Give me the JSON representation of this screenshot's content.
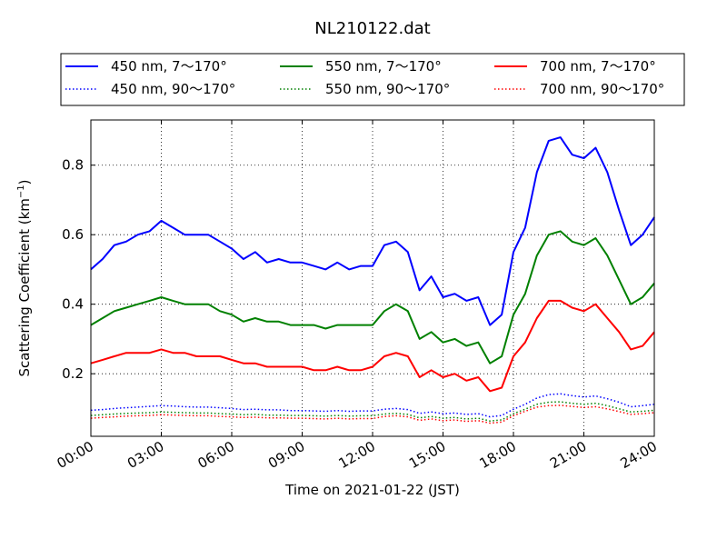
{
  "chart_data": {
    "type": "line",
    "title": "NL210122.dat",
    "xlabel": "Time on 2021-01-22 (JST)",
    "ylabel": "Scattering Coefficient (km",
    "ylabel_exp": "−1",
    "ylabel_close": ")",
    "xlim": [
      0,
      24
    ],
    "ylim": [
      0.02,
      0.93
    ],
    "grid": true,
    "legend_position": "top, above plot, 3 columns",
    "x_ticks": [
      {
        "value": 0,
        "label": "00:00"
      },
      {
        "value": 3,
        "label": "03:00"
      },
      {
        "value": 6,
        "label": "06:00"
      },
      {
        "value": 9,
        "label": "09:00"
      },
      {
        "value": 12,
        "label": "12:00"
      },
      {
        "value": 15,
        "label": "15:00"
      },
      {
        "value": 18,
        "label": "18:00"
      },
      {
        "value": 21,
        "label": "21:00"
      },
      {
        "value": 24,
        "label": "24:00"
      }
    ],
    "y_ticks": [
      {
        "value": 0.2,
        "label": "0.2"
      },
      {
        "value": 0.4,
        "label": "0.4"
      },
      {
        "value": 0.6,
        "label": "0.6"
      },
      {
        "value": 0.8,
        "label": "0.8"
      }
    ],
    "x": [
      0,
      0.5,
      1,
      1.5,
      2,
      2.5,
      3,
      3.5,
      4,
      4.5,
      5,
      5.5,
      6,
      6.5,
      7,
      7.5,
      8,
      8.5,
      9,
      9.5,
      10,
      10.5,
      11,
      11.5,
      12,
      12.5,
      13,
      13.5,
      14,
      14.5,
      15,
      15.5,
      16,
      16.5,
      17,
      17.5,
      18,
      18.5,
      19,
      19.5,
      20,
      20.5,
      21,
      21.5,
      22,
      22.5,
      23,
      23.5,
      24
    ],
    "series": [
      {
        "name": "450 nm, 7～170°",
        "color": "#0000ff",
        "dash": "solid",
        "values": [
          0.5,
          0.53,
          0.57,
          0.58,
          0.6,
          0.61,
          0.64,
          0.62,
          0.6,
          0.6,
          0.6,
          0.58,
          0.56,
          0.53,
          0.55,
          0.52,
          0.53,
          0.52,
          0.52,
          0.51,
          0.5,
          0.52,
          0.5,
          0.51,
          0.51,
          0.57,
          0.58,
          0.55,
          0.44,
          0.48,
          0.42,
          0.43,
          0.41,
          0.42,
          0.34,
          0.37,
          0.55,
          0.62,
          0.78,
          0.87,
          0.88,
          0.83,
          0.82,
          0.85,
          0.78,
          0.67,
          0.57,
          0.6,
          0.65
        ]
      },
      {
        "name": "550 nm, 7～170°",
        "color": "#008000",
        "dash": "solid",
        "values": [
          0.34,
          0.36,
          0.38,
          0.39,
          0.4,
          0.41,
          0.42,
          0.41,
          0.4,
          0.4,
          0.4,
          0.38,
          0.37,
          0.35,
          0.36,
          0.35,
          0.35,
          0.34,
          0.34,
          0.34,
          0.33,
          0.34,
          0.34,
          0.34,
          0.34,
          0.38,
          0.4,
          0.38,
          0.3,
          0.32,
          0.29,
          0.3,
          0.28,
          0.29,
          0.23,
          0.25,
          0.37,
          0.43,
          0.54,
          0.6,
          0.61,
          0.58,
          0.57,
          0.59,
          0.54,
          0.47,
          0.4,
          0.42,
          0.46
        ]
      },
      {
        "name": "700 nm, 7～170°",
        "color": "#ff0000",
        "dash": "solid",
        "values": [
          0.23,
          0.24,
          0.25,
          0.26,
          0.26,
          0.26,
          0.27,
          0.26,
          0.26,
          0.25,
          0.25,
          0.25,
          0.24,
          0.23,
          0.23,
          0.22,
          0.22,
          0.22,
          0.22,
          0.21,
          0.21,
          0.22,
          0.21,
          0.21,
          0.22,
          0.25,
          0.26,
          0.25,
          0.19,
          0.21,
          0.19,
          0.2,
          0.18,
          0.19,
          0.15,
          0.16,
          0.25,
          0.29,
          0.36,
          0.41,
          0.41,
          0.39,
          0.38,
          0.4,
          0.36,
          0.32,
          0.27,
          0.28,
          0.32
        ]
      },
      {
        "name": "450 nm, 90～170°",
        "color": "#0000ff",
        "dash": "dotted",
        "values": [
          0.095,
          0.097,
          0.1,
          0.102,
          0.104,
          0.106,
          0.108,
          0.107,
          0.105,
          0.104,
          0.104,
          0.102,
          0.1,
          0.097,
          0.098,
          0.096,
          0.096,
          0.094,
          0.094,
          0.093,
          0.092,
          0.094,
          0.092,
          0.093,
          0.093,
          0.098,
          0.1,
          0.097,
          0.086,
          0.09,
          0.085,
          0.087,
          0.083,
          0.085,
          0.076,
          0.08,
          0.098,
          0.112,
          0.13,
          0.14,
          0.142,
          0.137,
          0.133,
          0.136,
          0.128,
          0.118,
          0.105,
          0.108,
          0.112
        ]
      },
      {
        "name": "550 nm, 90～170°",
        "color": "#008000",
        "dash": "dotted",
        "values": [
          0.08,
          0.082,
          0.084,
          0.086,
          0.087,
          0.088,
          0.09,
          0.089,
          0.088,
          0.087,
          0.087,
          0.085,
          0.084,
          0.082,
          0.083,
          0.081,
          0.081,
          0.08,
          0.08,
          0.079,
          0.078,
          0.08,
          0.078,
          0.079,
          0.079,
          0.084,
          0.086,
          0.083,
          0.073,
          0.077,
          0.072,
          0.074,
          0.07,
          0.072,
          0.064,
          0.067,
          0.085,
          0.098,
          0.112,
          0.118,
          0.119,
          0.115,
          0.112,
          0.115,
          0.108,
          0.099,
          0.09,
          0.092,
          0.095
        ]
      },
      {
        "name": "700 nm, 90～170°",
        "color": "#ff0000",
        "dash": "dotted",
        "values": [
          0.072,
          0.074,
          0.076,
          0.078,
          0.079,
          0.08,
          0.082,
          0.081,
          0.08,
          0.079,
          0.079,
          0.077,
          0.076,
          0.074,
          0.075,
          0.073,
          0.073,
          0.072,
          0.072,
          0.071,
          0.07,
          0.072,
          0.07,
          0.071,
          0.071,
          0.077,
          0.079,
          0.076,
          0.066,
          0.07,
          0.065,
          0.067,
          0.063,
          0.065,
          0.058,
          0.061,
          0.079,
          0.092,
          0.104,
          0.108,
          0.109,
          0.106,
          0.103,
          0.105,
          0.099,
          0.091,
          0.083,
          0.085,
          0.088
        ]
      }
    ]
  }
}
